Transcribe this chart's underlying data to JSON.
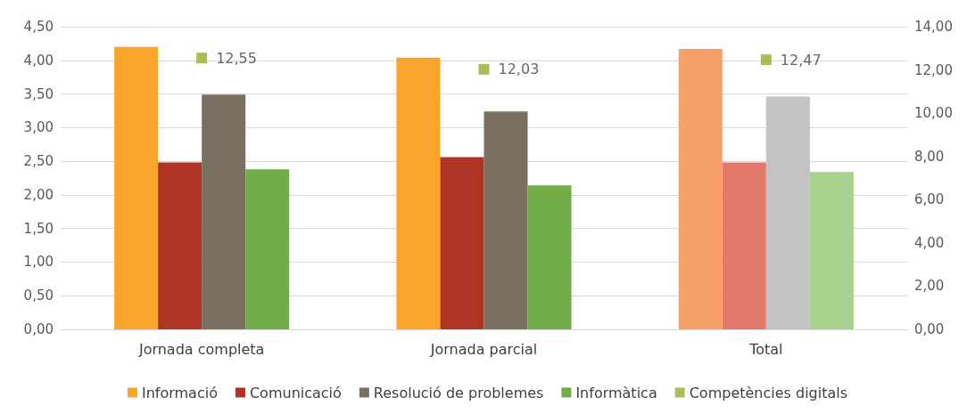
{
  "chart_data": {
    "type": "bar",
    "categories": [
      "Jornada completa",
      "Jornada parcial",
      "Total"
    ],
    "series": [
      {
        "name": "Informació",
        "color": "#f9a52b",
        "colors": [
          "#f9a52b",
          "#f9a52b",
          "#f8a06a"
        ],
        "values": [
          4.2,
          4.04,
          4.17
        ]
      },
      {
        "name": "Comunicació",
        "color": "#b03426",
        "colors": [
          "#b03426",
          "#b03426",
          "#e57a6c"
        ],
        "values": [
          2.48,
          2.56,
          2.48
        ]
      },
      {
        "name": "Resolució de problemes",
        "color": "#7a7062",
        "colors": [
          "#7a7062",
          "#7a7062",
          "#c4c4c4"
        ],
        "values": [
          3.49,
          3.24,
          3.46
        ]
      },
      {
        "name": "Informàtica",
        "color": "#70ad47",
        "colors": [
          "#70ad47",
          "#70ad47",
          "#a9d18e"
        ],
        "values": [
          2.38,
          2.14,
          2.34
        ]
      },
      {
        "name": "Competències digitals",
        "type": "scatter",
        "axis": "y2",
        "marker": "square",
        "color": "#9aab2a",
        "x": [
          "Jornada completa",
          "Jornada parcial",
          "Total"
        ],
        "values": [
          12.55,
          12.03,
          12.47
        ],
        "value_labels": [
          "12,55",
          "12,03",
          "12,47"
        ]
      }
    ],
    "ylim": [
      0,
      4.5
    ],
    "yticks": [
      {
        "value": 0,
        "label": "0,00"
      },
      {
        "value": 0.5,
        "label": "0,50"
      },
      {
        "value": 1,
        "label": "1,00"
      },
      {
        "value": 1.5,
        "label": "1,50"
      },
      {
        "value": 2,
        "label": "2,00"
      },
      {
        "value": 2.5,
        "label": "2,50"
      },
      {
        "value": 3,
        "label": "3,00"
      },
      {
        "value": 3.5,
        "label": "3,50"
      },
      {
        "value": 4,
        "label": "4,00"
      },
      {
        "value": 4.5,
        "label": "4,50"
      }
    ],
    "y2lim": [
      0,
      14
    ],
    "y2ticks": [
      {
        "value": 0,
        "label": "0,00"
      },
      {
        "value": 2,
        "label": "2,00"
      },
      {
        "value": 4,
        "label": "4,00"
      },
      {
        "value": 6,
        "label": "6,00"
      },
      {
        "value": 8,
        "label": "8,00"
      },
      {
        "value": 10,
        "label": "10,00"
      },
      {
        "value": 12,
        "label": "12,00"
      },
      {
        "value": 14,
        "label": "14,00"
      }
    ],
    "grid": "y",
    "legend": "bottom"
  }
}
